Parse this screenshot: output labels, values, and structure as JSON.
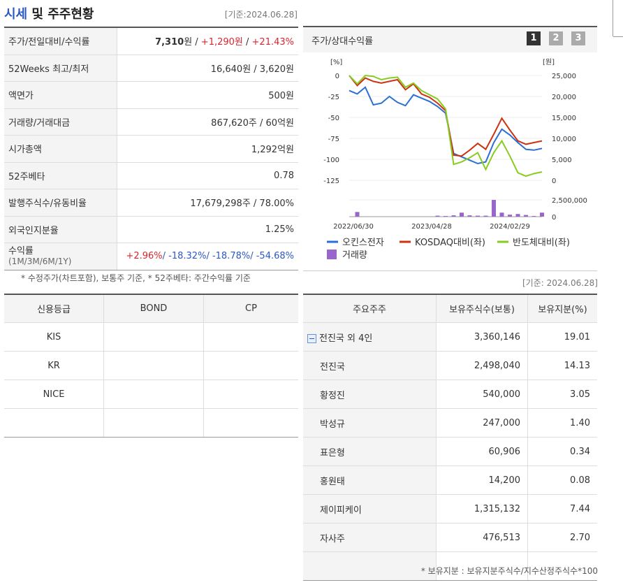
{
  "header": {
    "title_a": "시세",
    "title_b": " 및 주주현황",
    "base_date": "[기준:2024.06.28]"
  },
  "info": [
    {
      "label": "주가/전일대비/수익률",
      "p1": "7,310",
      "p2": "원 / ",
      "p3": "+1,290원",
      "p4": " / ",
      "p5": "+21.43%"
    },
    {
      "label": "52Weeks 최고/최저",
      "value": "16,640원 / 3,620원"
    },
    {
      "label": "액면가",
      "value": "500원"
    },
    {
      "label": "거래량/거래대금",
      "value": "867,620주 / 60억원"
    },
    {
      "label": "시가총액",
      "value": "1,292억원"
    },
    {
      "label": "52주베타",
      "value": "0.78"
    },
    {
      "label": "발행주식수/유동비율",
      "value": "17,679,298주 / 78.00%"
    },
    {
      "label": "외국인지분율",
      "value": "1.25%"
    },
    {
      "label": "수익률",
      "sublabel": "(1M/3M/6M/1Y)",
      "r1": "+2.96%",
      "r2": "/ -18.32%",
      "r3": "/ -18.78%",
      "r4": "/ -54.68%"
    }
  ],
  "info_note": "* 수정주가(차트포함), 보통주 기준, * 52주베타: 주간수익률 기준",
  "chart_panel": {
    "title": "주가/상대수익률",
    "tabs": [
      "1",
      "2",
      "3"
    ],
    "active_tab": "1",
    "tab_colors": {
      "active": "#333333",
      "inactive": "#aaaaaa"
    }
  },
  "chart_data": {
    "type": "line",
    "left_unit": "[%]",
    "right_unit": "[원]",
    "left_ticks": [
      "0",
      "-25",
      "-50",
      "-75",
      "-100",
      "-125"
    ],
    "right_ticks": [
      "25,000",
      "20,000",
      "15,000",
      "10,000",
      "5,000",
      "0"
    ],
    "volume_ticks": [
      "2,500,000",
      "0"
    ],
    "x_ticks": [
      "2022/06/30",
      "2023/04/28",
      "2024/02/29"
    ],
    "ylim_left": [
      -125,
      0
    ],
    "ylim_volume": [
      0,
      2500000
    ],
    "series": [
      {
        "name": "오킨스전자",
        "color": "#2b6fd6",
        "axis": "left",
        "values": [
          -18,
          -22,
          -14,
          -35,
          -33,
          -25,
          -32,
          -36,
          -23,
          -27,
          -31,
          -37,
          -45,
          -93,
          -97,
          -101,
          -105,
          -103,
          -80,
          -64,
          -71,
          -80,
          -88,
          -89,
          -87
        ]
      },
      {
        "name": "KOSDAQ대비(좌)",
        "color": "#cc3311",
        "axis": "left",
        "values": [
          0,
          -12,
          -3,
          -7,
          -9,
          -7,
          -5,
          -17,
          -10,
          -22,
          -26,
          -33,
          -42,
          -95,
          -96,
          -89,
          -81,
          -88,
          -70,
          -51,
          -65,
          -78,
          -82,
          -80,
          -78
        ]
      },
      {
        "name": "반도체대비(좌)",
        "color": "#88cc22",
        "axis": "left",
        "values": [
          0,
          -10,
          0,
          -1,
          -5,
          -3,
          -2,
          -14,
          -9,
          -18,
          -23,
          -28,
          -40,
          -106,
          -103,
          -98,
          -92,
          -112,
          -92,
          -78,
          -96,
          -116,
          -120,
          -117,
          -115
        ]
      }
    ],
    "volume": {
      "name": "거래량",
      "color": "#9966cc",
      "values": [
        0,
        700000,
        0,
        0,
        0,
        0,
        0,
        0,
        0,
        0,
        0,
        150000,
        100000,
        200000,
        600000,
        200000,
        150000,
        150000,
        2500000,
        600000,
        300000,
        400000,
        250000,
        100000,
        600000
      ]
    }
  },
  "date2": "[기준: 2024.06.28]",
  "credit": {
    "headers": [
      "신용등급",
      "BOND",
      "CP"
    ],
    "rows": [
      [
        "KIS",
        "",
        ""
      ],
      [
        "KR",
        "",
        ""
      ],
      [
        "NICE",
        "",
        ""
      ],
      [
        "",
        "",
        ""
      ]
    ]
  },
  "holders": {
    "headers": [
      "주요주주",
      "보유주식수(보통)",
      "보유지분(%)"
    ],
    "rows": [
      [
        "전진국 외 4인",
        "3,360,146",
        "19.01"
      ],
      [
        "전진국",
        "2,498,040",
        "14.13"
      ],
      [
        "황정진",
        "540,000",
        "3.05"
      ],
      [
        "박성규",
        "247,000",
        "1.40"
      ],
      [
        "표은형",
        "60,906",
        "0.34"
      ],
      [
        "홍원태",
        "14,200",
        "0.08"
      ],
      [
        "제이피케이",
        "1,315,132",
        "7.44"
      ],
      [
        "자사주",
        "476,513",
        "2.70"
      ],
      [
        "",
        "",
        ""
      ]
    ]
  },
  "holders_note": "* 보유지분 : 보유지분주식수/지수산정주식수*100"
}
